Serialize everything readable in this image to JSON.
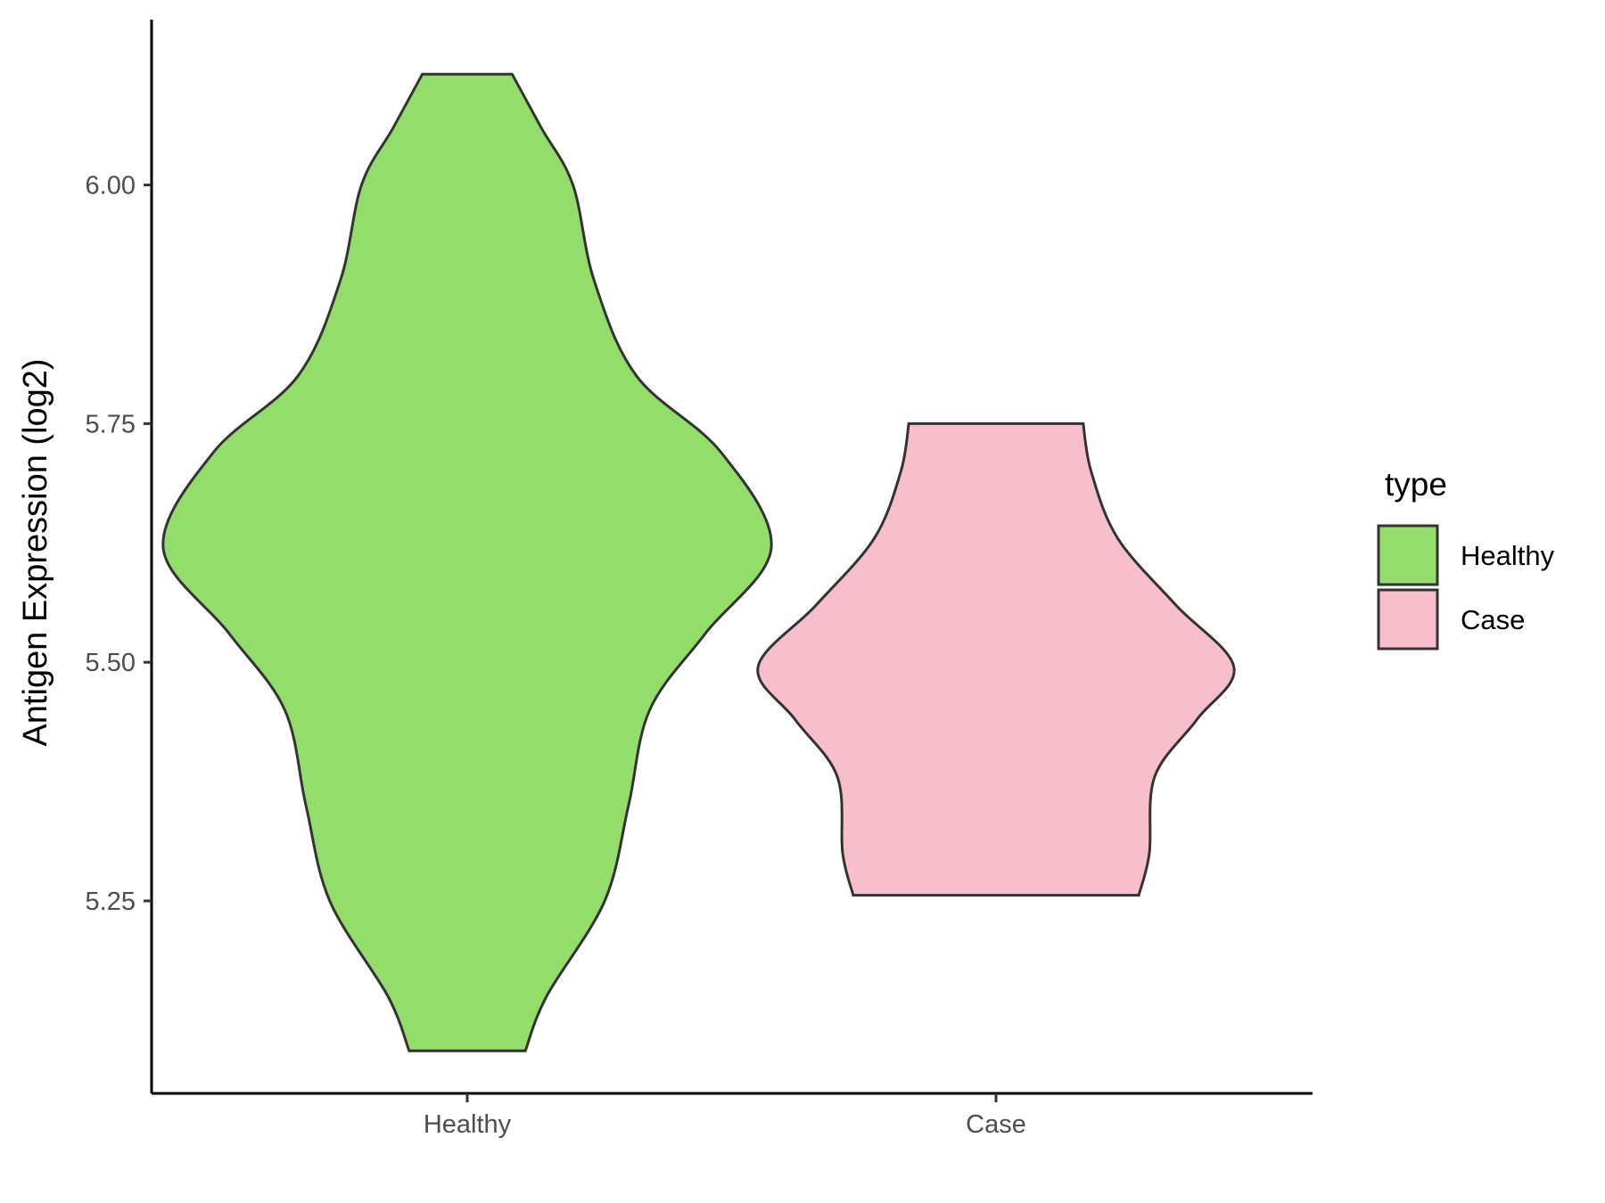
{
  "chart_data": {
    "type": "violin",
    "xlabel": "",
    "ylabel": "Antigen Expression (log2)",
    "categories": [
      "Healthy",
      "Case"
    ],
    "yticks": [
      {
        "value": 5.25,
        "label": "5.25"
      },
      {
        "value": 5.5,
        "label": "5.50"
      },
      {
        "value": 5.75,
        "label": "5.75"
      },
      {
        "value": 6.0,
        "label": "6.00"
      }
    ],
    "ylim": [
      5.07,
      6.17
    ],
    "grid": false,
    "legend": {
      "title": "type",
      "placement": "right",
      "entries": [
        {
          "label": "Healthy",
          "color": "#93dd6a"
        },
        {
          "label": "Case",
          "color": "#f7bfcb"
        }
      ]
    },
    "series": [
      {
        "category": "Healthy",
        "color": "#93dd6a",
        "min": 5.093,
        "max": 6.116,
        "density_profile": [
          {
            "y": 5.093,
            "halfwidth": 0.11
          },
          {
            "y": 5.15,
            "halfwidth": 0.15
          },
          {
            "y": 5.25,
            "halfwidth": 0.26
          },
          {
            "y": 5.35,
            "halfwidth": 0.305
          },
          {
            "y": 5.45,
            "halfwidth": 0.345
          },
          {
            "y": 5.53,
            "halfwidth": 0.45
          },
          {
            "y": 5.62,
            "halfwidth": 0.575
          },
          {
            "y": 5.72,
            "halfwidth": 0.48
          },
          {
            "y": 5.8,
            "halfwidth": 0.32
          },
          {
            "y": 5.9,
            "halfwidth": 0.24
          },
          {
            "y": 6.0,
            "halfwidth": 0.2
          },
          {
            "y": 6.06,
            "halfwidth": 0.14
          },
          {
            "y": 6.116,
            "halfwidth": 0.085
          }
        ]
      },
      {
        "category": "Case",
        "color": "#f7bfcb",
        "min": 5.256,
        "max": 5.75,
        "density_profile": [
          {
            "y": 5.256,
            "halfwidth": 0.27
          },
          {
            "y": 5.3,
            "halfwidth": 0.29
          },
          {
            "y": 5.38,
            "halfwidth": 0.3
          },
          {
            "y": 5.44,
            "halfwidth": 0.38
          },
          {
            "y": 5.495,
            "halfwidth": 0.45
          },
          {
            "y": 5.56,
            "halfwidth": 0.34
          },
          {
            "y": 5.63,
            "halfwidth": 0.23
          },
          {
            "y": 5.7,
            "halfwidth": 0.18
          },
          {
            "y": 5.75,
            "halfwidth": 0.165
          }
        ]
      }
    ]
  }
}
